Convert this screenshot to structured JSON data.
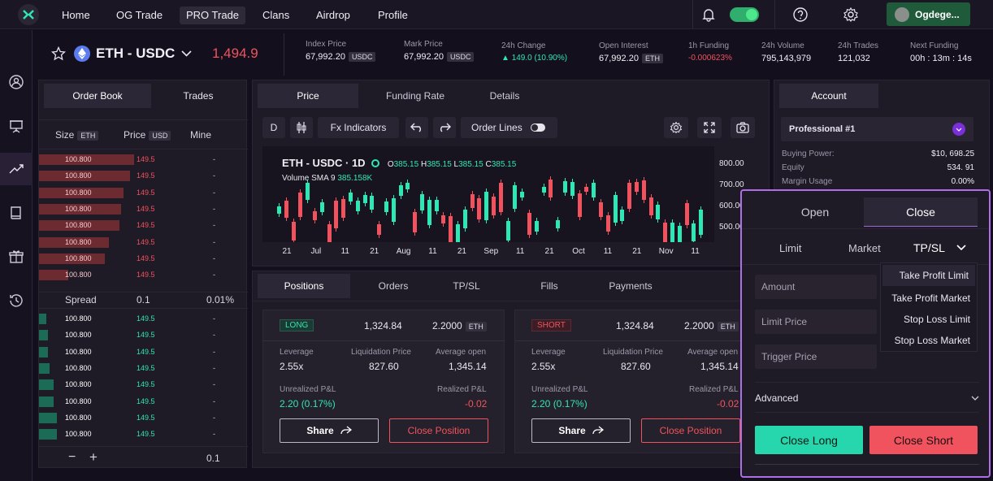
{
  "nav": {
    "items": [
      "Home",
      "OG Trade",
      "PRO Trade",
      "Clans",
      "Airdrop",
      "Profile"
    ],
    "active": "PRO Trade",
    "user": "Ogdege..."
  },
  "market": {
    "pair": "ETH - USDC",
    "price": "1,494.9",
    "stats": [
      {
        "label": "Index Price",
        "value": "67,992.20",
        "unit": "USDC"
      },
      {
        "label": "Mark Price",
        "value": "67,992.20",
        "unit": "USDC"
      },
      {
        "label": "24h Change",
        "value": "149.0 (10.90%)",
        "unit": ""
      },
      {
        "label": "Open Interest",
        "value": "67,992.20",
        "unit": "ETH"
      },
      {
        "label": "1h Funding",
        "value": "-0.000623%",
        "unit": ""
      },
      {
        "label": "24h Volume",
        "value": "795,143,979",
        "unit": ""
      },
      {
        "label": "24h Trades",
        "value": "121,032",
        "unit": ""
      },
      {
        "label": "Next Funding",
        "value": "00h : 13m : 14s",
        "unit": ""
      }
    ]
  },
  "orderbook": {
    "tabs": [
      "Order Book",
      "Trades"
    ],
    "headers": {
      "size": "Size",
      "size_unit": "ETH",
      "price": "Price",
      "price_unit": "USD",
      "mine": "Mine"
    },
    "asks": [
      {
        "size": "100.800",
        "price": "149.5",
        "mine": "-",
        "fill": 0.65
      },
      {
        "size": "100.800",
        "price": "149.5",
        "mine": "-",
        "fill": 0.62
      },
      {
        "size": "100.800",
        "price": "149.5",
        "mine": "-",
        "fill": 0.58
      },
      {
        "size": "100.800",
        "price": "149.5",
        "mine": "-",
        "fill": 0.56
      },
      {
        "size": "100.800",
        "price": "149.5",
        "mine": "-",
        "fill": 0.55
      },
      {
        "size": "100.800",
        "price": "149.5",
        "mine": "-",
        "fill": 0.48
      },
      {
        "size": "100.800",
        "price": "149.5",
        "mine": "-",
        "fill": 0.45
      },
      {
        "size": "100.800",
        "price": "149.5",
        "mine": "-",
        "fill": 0.2
      }
    ],
    "spread": {
      "label": "Spread",
      "value": "0.1",
      "pct": "0.01%"
    },
    "bids": [
      {
        "size": "100.800",
        "price": "149.5",
        "mine": "-",
        "fill": 0.05
      },
      {
        "size": "100.800",
        "price": "149.5",
        "mine": "-",
        "fill": 0.06
      },
      {
        "size": "100.800",
        "price": "149.5",
        "mine": "-",
        "fill": 0.06
      },
      {
        "size": "100.800",
        "price": "149.5",
        "mine": "-",
        "fill": 0.07
      },
      {
        "size": "100.800",
        "price": "149.5",
        "mine": "-",
        "fill": 0.1
      },
      {
        "size": "100.800",
        "price": "149.5",
        "mine": "-",
        "fill": 0.1
      },
      {
        "size": "100.800",
        "price": "149.5",
        "mine": "-",
        "fill": 0.12
      },
      {
        "size": "100.800",
        "price": "149.5",
        "mine": "-",
        "fill": 0.12
      }
    ],
    "footer_value": "0.1"
  },
  "chart": {
    "tabs": [
      "Price",
      "Funding Rate",
      "Details"
    ],
    "toolbar": {
      "d": "D",
      "indicators": "Fx Indicators",
      "orderlines": "Order Lines"
    },
    "title": "ETH - USDC · 1D",
    "ohlc": {
      "o": "385.15",
      "h": "385.15",
      "l": "385.15",
      "c": "385.15"
    },
    "volume": "Volume SMA 9",
    "volume_value": "385.158K",
    "yticks": [
      "800.00",
      "700.00",
      "600.00",
      "500.00"
    ],
    "xticks": [
      "21",
      "Jul",
      "11",
      "21",
      "Aug",
      "11",
      "21",
      "Sep",
      "11",
      "21",
      "Oct",
      "11",
      "21",
      "Nov",
      "11"
    ]
  },
  "positions": {
    "tabs": [
      "Positions",
      "Orders",
      "TP/SL",
      "Fills",
      "Payments"
    ],
    "cards": [
      {
        "side": "LONG",
        "value": "1,324.84",
        "size": "2.2000",
        "size_unit": "ETH",
        "leverage_label": "Leverage",
        "leverage": "2.55x",
        "liq_label": "Liquidation Price",
        "liq": "827.60",
        "avg_label": "Average open",
        "avg": "1,345.14",
        "upnl_label": "Unrealized P&L",
        "upnl": "2.20 (0.17%)",
        "rpnl_label": "Realized P&L",
        "rpnl": "-0.02",
        "share": "Share",
        "close": "Close Position"
      },
      {
        "side": "SHORT",
        "value": "1,324.84",
        "size": "2.2000",
        "size_unit": "ETH",
        "leverage_label": "Leverage",
        "leverage": "2.55x",
        "liq_label": "Liquidation Price",
        "liq": "827.60",
        "avg_label": "Average open",
        "avg": "1,345.14",
        "upnl_label": "Unrealized P&L",
        "upnl": "2.20 (0.17%)",
        "rpnl_label": "Realized P&L",
        "rpnl": "-0.02",
        "share": "Share",
        "close": "Close Position"
      }
    ]
  },
  "account": {
    "tab": "Account",
    "name": "Professional #1",
    "rows": [
      {
        "label": "Buying Power:",
        "value": "$10, 698.25"
      },
      {
        "label": "Equity",
        "value": "534. 91"
      },
      {
        "label": "Margin Usage",
        "value": "0.00%"
      }
    ]
  },
  "trade": {
    "tabs": [
      "Open",
      "Close"
    ],
    "types": [
      "Limit",
      "Market",
      "TP/SL"
    ],
    "fields": [
      "Amount",
      "Limit Price",
      "Trigger Price"
    ],
    "dropdown": [
      "Take Profit Limit",
      "Take Profit Market",
      "Stop Loss Limit",
      "Stop Loss Market"
    ],
    "advanced": "Advanced",
    "close_long": "Close Long",
    "close_short": "Close Short"
  },
  "colors": {
    "green": "#2fe6b5",
    "red": "#f0535d",
    "accent": "#b06ee6"
  }
}
